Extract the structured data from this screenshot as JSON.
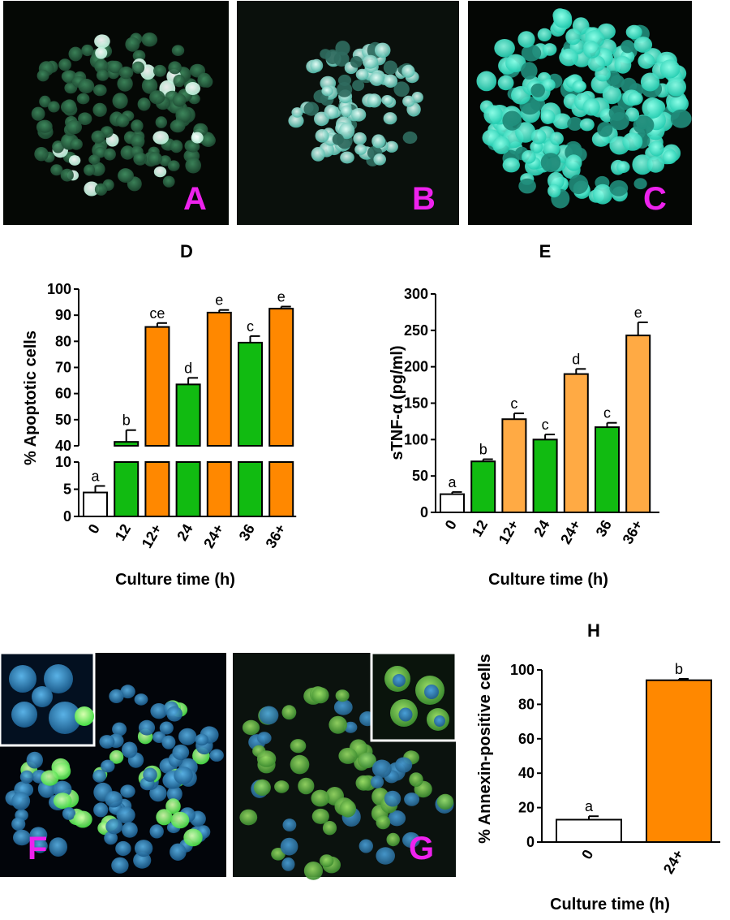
{
  "colors": {
    "white": "#ffffff",
    "green": "#11bb11",
    "orange": "#ff8800",
    "light_orange": "#ffaa44",
    "panel_label": "#ee22ee",
    "micro_bg": "#060a06"
  },
  "micrographs": {
    "A": {
      "label": "A"
    },
    "B": {
      "label": "B"
    },
    "C": {
      "label": "C"
    },
    "F": {
      "label": "F"
    },
    "G": {
      "label": "G"
    }
  },
  "chart_data": [
    {
      "id": "D",
      "type": "bar",
      "title": "D",
      "xlabel": "Culture time (h)",
      "ylabel": "% Apoptotic cells",
      "broken_axis": true,
      "lower_segment": {
        "range": [
          0,
          10
        ],
        "ticks": [
          "0",
          "5",
          "10"
        ]
      },
      "upper_segment": {
        "range": [
          40,
          100
        ],
        "ticks": [
          "40",
          "50",
          "60",
          "70",
          "80",
          "90",
          "100"
        ]
      },
      "categories": [
        "0",
        "12",
        "12+",
        "24",
        "24+",
        "36",
        "36+"
      ],
      "values": [
        4.4,
        41.5,
        85.5,
        63.5,
        91.0,
        79.5,
        92.5
      ],
      "errors": [
        1.2,
        4.5,
        1.5,
        2.5,
        1.0,
        2.5,
        0.8
      ],
      "significance": [
        "a",
        "b",
        "ce",
        "d",
        "e",
        "c",
        "e"
      ],
      "bar_colors": [
        "white",
        "green",
        "orange",
        "green",
        "orange",
        "green",
        "orange"
      ]
    },
    {
      "id": "E",
      "type": "bar",
      "title": "E",
      "xlabel": "Culture time (h)",
      "ylabel": "sTNF-α (pg/ml)",
      "ylim": [
        0,
        300
      ],
      "yticks": [
        "0",
        "50",
        "100",
        "150",
        "200",
        "250",
        "300"
      ],
      "categories": [
        "0",
        "12",
        "12+",
        "24",
        "24+",
        "36",
        "36+"
      ],
      "values": [
        25,
        70,
        128,
        100,
        190,
        117,
        243
      ],
      "errors": [
        3,
        3,
        8,
        7,
        7,
        6,
        18
      ],
      "significance": [
        "a",
        "b",
        "c",
        "c",
        "d",
        "c",
        "e"
      ],
      "bar_colors": [
        "white",
        "green",
        "light_orange",
        "green",
        "light_orange",
        "green",
        "light_orange"
      ]
    },
    {
      "id": "H",
      "type": "bar",
      "title": "H",
      "xlabel": "Culture time (h)",
      "ylabel": "% Annexin-positive cells",
      "ylim": [
        0,
        100
      ],
      "yticks": [
        "0",
        "20",
        "40",
        "60",
        "80",
        "100"
      ],
      "categories": [
        "0",
        "24+"
      ],
      "values": [
        13,
        94
      ],
      "errors": [
        2,
        0.8
      ],
      "significance": [
        "a",
        "b"
      ],
      "bar_colors": [
        "white",
        "orange"
      ]
    }
  ]
}
